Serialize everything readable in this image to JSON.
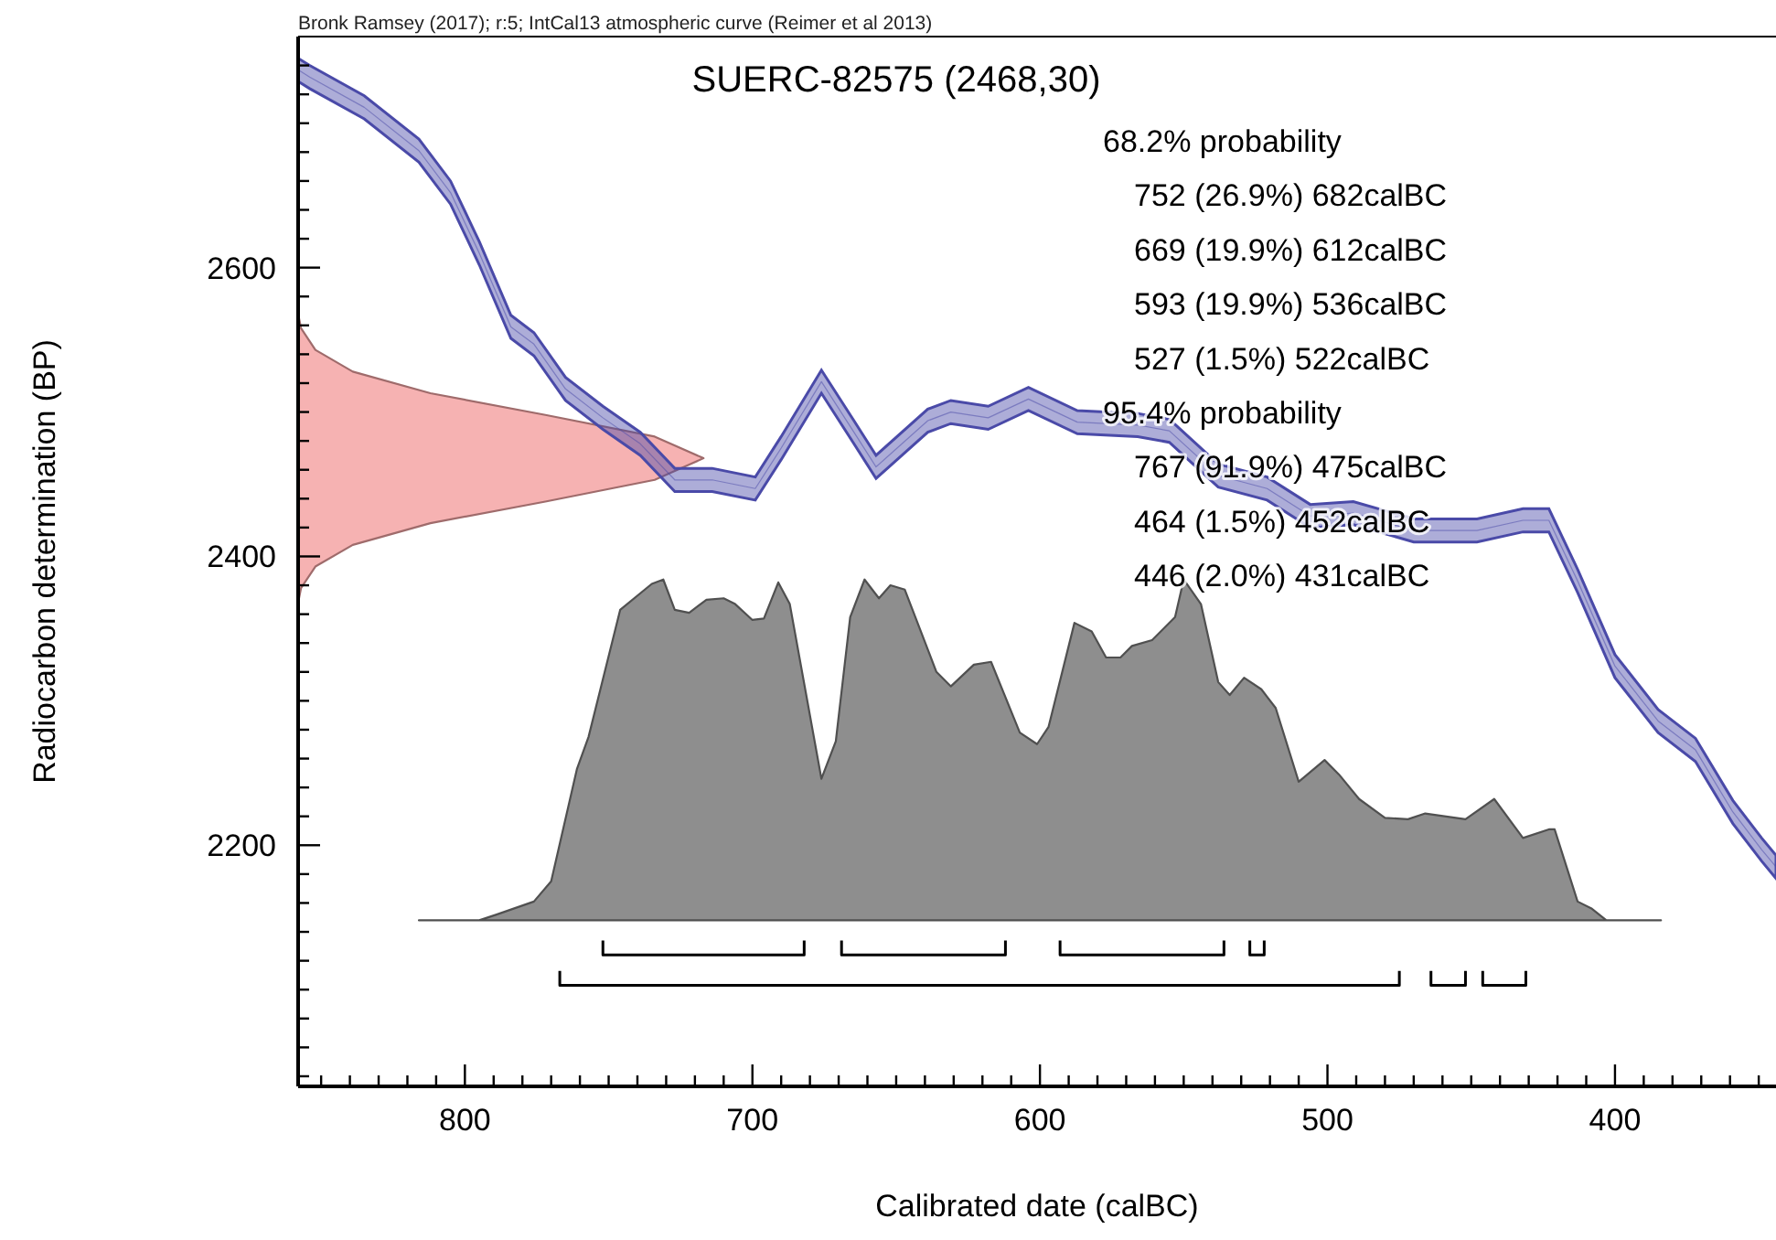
{
  "chart_data": {
    "type": "line",
    "title": "SUERC-82575 (2468,30)",
    "subtitle": "Bronk Ramsey (2017); r:5; IntCal13 atmospheric curve (Reimer et al 2013)",
    "xlabel": "Calibrated date (calBC)",
    "ylabel": "Radiocarbon determination (BP)",
    "annotations": [
      "68.2% probability",
      "752 (26.9%) 682calBC",
      "669 (19.9%) 612calBC",
      "593 (19.9%) 536calBC",
      "527 (1.5%) 522calBC",
      "95.4% probability",
      "767 (91.9%) 475calBC",
      "464 (1.5%) 452calBC",
      "446 (2.0%) 431calBC"
    ],
    "xlim": [
      858,
      344
    ],
    "ylim": [
      2033,
      2760
    ],
    "xticks": [
      {
        "value": 850,
        "label": null
      },
      {
        "value": 840,
        "label": null
      },
      {
        "value": 830,
        "label": null
      },
      {
        "value": 820,
        "label": null
      },
      {
        "value": 810,
        "label": null
      },
      800,
      {
        "value": 790,
        "label": null
      },
      {
        "value": 780,
        "label": null
      },
      {
        "value": 770,
        "label": null
      },
      {
        "value": 760,
        "label": null
      },
      {
        "value": 750,
        "label": null
      },
      {
        "value": 740,
        "label": null
      },
      {
        "value": 730,
        "label": null
      },
      {
        "value": 720,
        "label": null
      },
      {
        "value": 710,
        "label": null
      },
      700,
      {
        "value": 690,
        "label": null
      },
      {
        "value": 680,
        "label": null
      },
      {
        "value": 670,
        "label": null
      },
      {
        "value": 660,
        "label": null
      },
      {
        "value": 650,
        "label": null
      },
      {
        "value": 640,
        "label": null
      },
      {
        "value": 630,
        "label": null
      },
      {
        "value": 620,
        "label": null
      },
      {
        "value": 610,
        "label": null
      },
      600,
      {
        "value": 590,
        "label": null
      },
      {
        "value": 580,
        "label": null
      },
      {
        "value": 570,
        "label": null
      },
      {
        "value": 560,
        "label": null
      },
      {
        "value": 550,
        "label": null
      },
      {
        "value": 540,
        "label": null
      },
      {
        "value": 530,
        "label": null
      },
      {
        "value": 520,
        "label": null
      },
      {
        "value": 510,
        "label": null
      },
      500,
      {
        "value": 490,
        "label": null
      },
      {
        "value": 480,
        "label": null
      },
      {
        "value": 470,
        "label": null
      },
      {
        "value": 460,
        "label": null
      },
      {
        "value": 450,
        "label": null
      },
      {
        "value": 440,
        "label": null
      },
      {
        "value": 430,
        "label": null
      },
      {
        "value": 420,
        "label": null
      },
      {
        "value": 410,
        "label": null
      },
      400,
      {
        "value": 390,
        "label": null
      },
      {
        "value": 380,
        "label": null
      },
      {
        "value": 370,
        "label": null
      },
      {
        "value": 360,
        "label": null
      },
      {
        "value": 350,
        "label": null
      }
    ],
    "yticks": [
      {
        "value": 2040,
        "label": null
      },
      {
        "value": 2060,
        "label": null
      },
      {
        "value": 2080,
        "label": null
      },
      {
        "value": 2100,
        "label": null
      },
      {
        "value": 2120,
        "label": null
      },
      {
        "value": 2140,
        "label": null
      },
      {
        "value": 2160,
        "label": null
      },
      {
        "value": 2180,
        "label": null
      },
      2200,
      {
        "value": 2220,
        "label": null
      },
      {
        "value": 2240,
        "label": null
      },
      {
        "value": 2260,
        "label": null
      },
      {
        "value": 2280,
        "label": null
      },
      {
        "value": 2300,
        "label": null
      },
      {
        "value": 2320,
        "label": null
      },
      {
        "value": 2340,
        "label": null
      },
      {
        "value": 2360,
        "label": null
      },
      {
        "value": 2380,
        "label": null
      },
      2400,
      {
        "value": 2420,
        "label": null
      },
      {
        "value": 2440,
        "label": null
      },
      {
        "value": 2460,
        "label": null
      },
      {
        "value": 2480,
        "label": null
      },
      {
        "value": 2500,
        "label": null
      },
      {
        "value": 2520,
        "label": null
      },
      {
        "value": 2540,
        "label": null
      },
      {
        "value": 2560,
        "label": null
      },
      {
        "value": 2580,
        "label": null
      },
      2600,
      {
        "value": 2620,
        "label": null
      },
      {
        "value": 2640,
        "label": null
      },
      {
        "value": 2660,
        "label": null
      },
      {
        "value": 2680,
        "label": null
      },
      {
        "value": 2700,
        "label": null
      },
      {
        "value": 2720,
        "label": null
      },
      {
        "value": 2740,
        "label": null
      }
    ],
    "series": [
      {
        "type": "area",
        "color": "#7a7a7a",
        "x": [
          816,
          795,
          789,
          776,
          770,
          761,
          757,
          746,
          735,
          731,
          727,
          722,
          716,
          710,
          706,
          700,
          696,
          691,
          687,
          676,
          671,
          666,
          661,
          656,
          652,
          647,
          636,
          631,
          623,
          617,
          607,
          601,
          597,
          588,
          582,
          577,
          572,
          568,
          561,
          553,
          550,
          544,
          538,
          534,
          529,
          523,
          518,
          510,
          501,
          496,
          489,
          480,
          472,
          466,
          452,
          442,
          432,
          423,
          421,
          413,
          408,
          403,
          384
        ],
        "values": [
          2148,
          2148,
          2152,
          2161,
          2175,
          2253,
          2275,
          2363,
          2381,
          2384,
          2363,
          2361,
          2370,
          2371,
          2367,
          2356,
          2357,
          2382,
          2367,
          2246,
          2272,
          2358,
          2384,
          2371,
          2380,
          2377,
          2320,
          2310,
          2325,
          2327,
          2278,
          2270,
          2282,
          2354,
          2348,
          2330,
          2330,
          2338,
          2342,
          2358,
          2384,
          2367,
          2313,
          2304,
          2316,
          2308,
          2295,
          2244,
          2259,
          2249,
          2232,
          2219,
          2218,
          2222,
          2218,
          2232,
          2205,
          2211,
          2211,
          2161,
          2156,
          2148,
          2148
        ]
      },
      {
        "type": "area",
        "color": "#f4a4a4",
        "x": [
          858,
          857,
          852,
          839,
          812,
          772,
          734,
          717,
          734,
          772,
          812,
          839,
          852,
          857,
          858
        ],
        "values": [
          2368,
          2378,
          2393,
          2408,
          2423,
          2438,
          2453,
          2468,
          2483,
          2498,
          2513,
          2528,
          2543,
          2558,
          2568
        ]
      },
      {
        "color": "#4a4aa8",
        "x": [
          858,
          854,
          835,
          816,
          805,
          795,
          784,
          776,
          765,
          752,
          739,
          727,
          714,
          699,
          690,
          676,
          665,
          657,
          639,
          631,
          618,
          604,
          587,
          566,
          555,
          538,
          521,
          506,
          491,
          470,
          448,
          432,
          423,
          413,
          400,
          385,
          372,
          359,
          349,
          344
        ],
        "values": [
          2737,
          2732,
          2711,
          2681,
          2652,
          2610,
          2559,
          2547,
          2516,
          2496,
          2478,
          2453,
          2453,
          2447,
          2475,
          2521,
          2487,
          2462,
          2494,
          2500,
          2496,
          2509,
          2493,
          2491,
          2487,
          2456,
          2447,
          2428,
          2430,
          2418,
          2418,
          2425,
          2425,
          2383,
          2324,
          2286,
          2266,
          2223,
          2197,
          2185
        ],
        "lower": [
          2729,
          2724,
          2703,
          2673,
          2644,
          2602,
          2551,
          2539,
          2508,
          2488,
          2470,
          2445,
          2445,
          2439,
          2467,
          2513,
          2479,
          2454,
          2486,
          2492,
          2488,
          2501,
          2485,
          2483,
          2479,
          2448,
          2439,
          2420,
          2422,
          2410,
          2410,
          2417,
          2417,
          2375,
          2316,
          2278,
          2258,
          2215,
          2189,
          2177
        ],
        "upper": [
          2745,
          2740,
          2719,
          2689,
          2660,
          2618,
          2567,
          2555,
          2524,
          2504,
          2486,
          2461,
          2461,
          2455,
          2483,
          2529,
          2495,
          2470,
          2502,
          2508,
          2504,
          2517,
          2501,
          2499,
          2495,
          2464,
          2455,
          2436,
          2438,
          2426,
          2426,
          2433,
          2433,
          2391,
          2332,
          2294,
          2274,
          2231,
          2205,
          2193
        ]
      },
      {
        "type": "line",
        "color": "#000000",
        "x": [
          752,
          752,
          682,
          682
        ],
        "values": [
          2134,
          2124,
          2124,
          2134
        ]
      },
      {
        "type": "line",
        "color": "#000000",
        "x": [
          669,
          669,
          612,
          612
        ],
        "values": [
          2134,
          2124,
          2124,
          2134
        ]
      },
      {
        "type": "line",
        "color": "#000000",
        "x": [
          593,
          593,
          536,
          536
        ],
        "values": [
          2134,
          2124,
          2124,
          2134
        ]
      },
      {
        "type": "line",
        "color": "#000000",
        "x": [
          527,
          527,
          522,
          522
        ],
        "values": [
          2134,
          2124,
          2124,
          2134
        ]
      },
      {
        "type": "line",
        "color": "#000000",
        "x": [
          767,
          767,
          475,
          475
        ],
        "values": [
          2113,
          2103,
          2103,
          2113
        ]
      },
      {
        "type": "line",
        "color": "#000000",
        "x": [
          464,
          464,
          452,
          452
        ],
        "values": [
          2113,
          2103,
          2103,
          2113
        ]
      },
      {
        "type": "line",
        "color": "#000000",
        "x": [
          446,
          446,
          431,
          431
        ],
        "values": [
          2113,
          2103,
          2103,
          2113
        ]
      }
    ]
  }
}
